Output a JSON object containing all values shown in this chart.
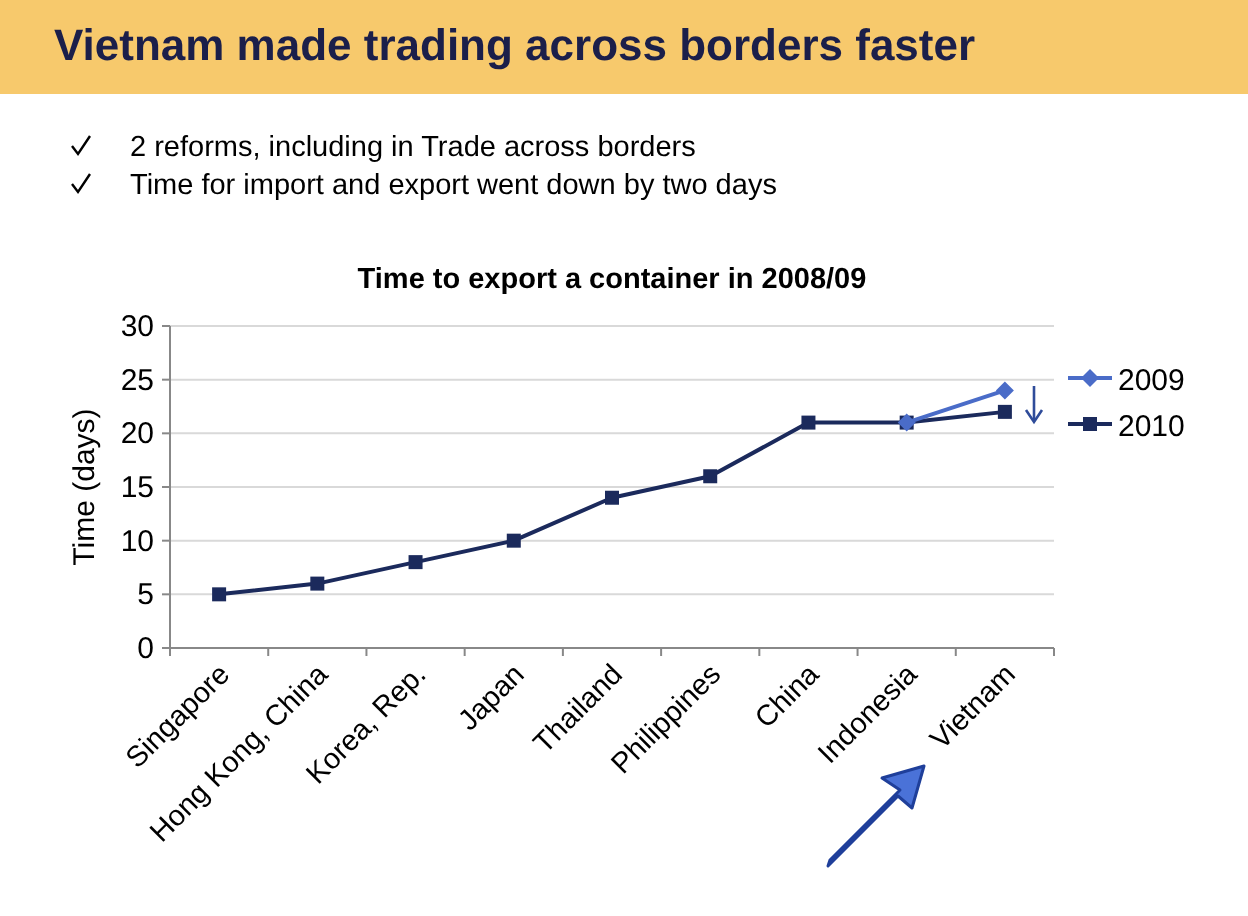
{
  "chart_data": {
    "type": "line",
    "title": "Vietnam made trading across borders faster",
    "subtitle": "Time to export a container in 2008/09",
    "ylabel": "Time (days)",
    "annotations": [
      "2 reforms, including in Trade across borders",
      "Time for import and export went down by two days"
    ],
    "categories": [
      "Singapore",
      "Hong Kong, China",
      "Korea, Rep.",
      "Japan",
      "Thailand",
      "Philippines",
      "China",
      "Indonesia",
      "Vietnam"
    ],
    "series": [
      {
        "name": "2009",
        "color": "#4a6cc8",
        "marker": "diamond",
        "values": [
          null,
          null,
          null,
          null,
          null,
          null,
          null,
          21,
          24
        ]
      },
      {
        "name": "2010",
        "color": "#1b2a5c",
        "marker": "square",
        "values": [
          5,
          6,
          8,
          10,
          14,
          16,
          21,
          21,
          22
        ]
      }
    ],
    "ylim": [
      0,
      30
    ],
    "yticks": [
      0,
      5,
      10,
      15,
      20,
      25,
      30
    ],
    "grid": "y",
    "legend": "right"
  }
}
